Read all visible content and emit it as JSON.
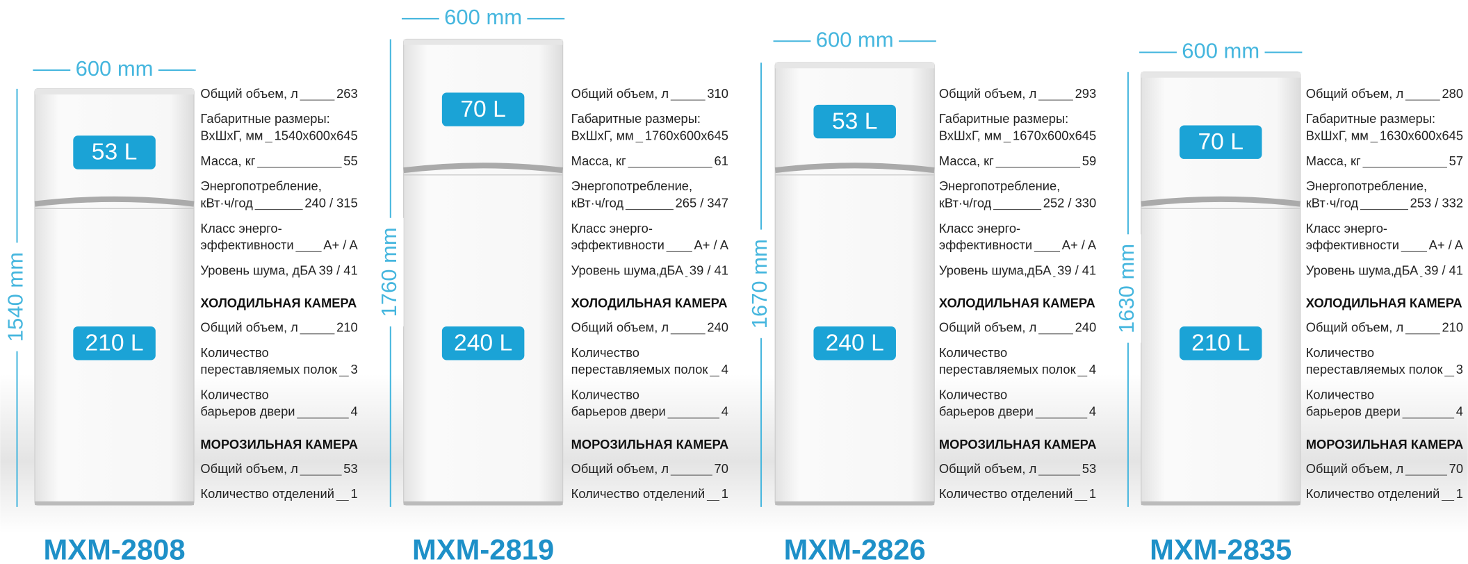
{
  "products": [
    {
      "model": "MXM-2808",
      "width": "600 mm",
      "height": "1540 mm",
      "top_volume": "53 L",
      "bottom_volume": "210 L",
      "general": [
        {
          "label": [
            "Общий объем, л"
          ],
          "value": "263"
        },
        {
          "label": [
            "Габаритные размеры:",
            "ВхШхГ, мм"
          ],
          "value": "1540x600x645"
        },
        {
          "label": [
            "Масса, кг"
          ],
          "value": "55"
        },
        {
          "label": [
            "Энергопотребление,",
            "кВт·ч/год"
          ],
          "value": "240 / 315"
        },
        {
          "label": [
            "Класс энерго-",
            "эффективности"
          ],
          "value": "A+ / A"
        },
        {
          "label": [
            "Уровень шума, дБА"
          ],
          "value": "39 / 41"
        }
      ],
      "fridge": {
        "title": "ХОЛОДИЛЬНАЯ КАМЕРА",
        "specs": [
          {
            "label": [
              "Общий объем, л"
            ],
            "value": "210"
          },
          {
            "label": [
              "Количество",
              "переставляемых полок"
            ],
            "value": "3"
          },
          {
            "label": [
              "Количество",
              "барьеров двери"
            ],
            "value": "4"
          }
        ]
      },
      "freezer": {
        "title": "МОРОЗИЛЬНАЯ КАМЕРА",
        "specs": [
          {
            "label": [
              "Общий объем, л"
            ],
            "value": "53"
          },
          {
            "label": [
              "Количество отделений"
            ],
            "value": "1"
          }
        ]
      }
    },
    {
      "model": "MXM-2819",
      "width": "600 mm",
      "height": "1760 mm",
      "top_volume": "70 L",
      "bottom_volume": "240 L",
      "general": [
        {
          "label": [
            "Общий объем, л"
          ],
          "value": "310"
        },
        {
          "label": [
            "Габаритные размеры:",
            "ВхШхГ, мм"
          ],
          "value": "1760x600x645"
        },
        {
          "label": [
            "Масса, кг"
          ],
          "value": "61"
        },
        {
          "label": [
            "Энергопотребление,",
            "кВт·ч/год"
          ],
          "value": "265 / 347"
        },
        {
          "label": [
            "Класс энерго-",
            "эффективности"
          ],
          "value": "A+ / A"
        },
        {
          "label": [
            "Уровень шума,дБА"
          ],
          "value": "39 / 41"
        }
      ],
      "fridge": {
        "title": "ХОЛОДИЛЬНАЯ КАМЕРА",
        "specs": [
          {
            "label": [
              "Общий объем, л"
            ],
            "value": "240"
          },
          {
            "label": [
              "Количество",
              "переставляемых полок"
            ],
            "value": "4"
          },
          {
            "label": [
              "Количество",
              "барьеров двери"
            ],
            "value": "4"
          }
        ]
      },
      "freezer": {
        "title": "МОРОЗИЛЬНАЯ КАМЕРА",
        "specs": [
          {
            "label": [
              "Общий объем, л"
            ],
            "value": "70"
          },
          {
            "label": [
              "Количество отделений"
            ],
            "value": "1"
          }
        ]
      }
    },
    {
      "model": "MXM-2826",
      "width": "600 mm",
      "height": "1670 mm",
      "top_volume": "53 L",
      "bottom_volume": "240 L",
      "general": [
        {
          "label": [
            "Общий объем, л"
          ],
          "value": "293"
        },
        {
          "label": [
            "Габаритные размеры:",
            "ВхШхГ, мм"
          ],
          "value": "1670x600x645"
        },
        {
          "label": [
            "Масса, кг"
          ],
          "value": "59"
        },
        {
          "label": [
            "Энергопотребление,",
            "кВт·ч/год"
          ],
          "value": "252 / 330"
        },
        {
          "label": [
            "Класс энерго-",
            "эффективности"
          ],
          "value": "A+ / A"
        },
        {
          "label": [
            "Уровень шума,дБА"
          ],
          "value": "39 / 41"
        }
      ],
      "fridge": {
        "title": "ХОЛОДИЛЬНАЯ КАМЕРА",
        "specs": [
          {
            "label": [
              "Общий объем, л"
            ],
            "value": "240"
          },
          {
            "label": [
              "Количество",
              "переставляемых полок"
            ],
            "value": "4"
          },
          {
            "label": [
              "Количество",
              "барьеров двери"
            ],
            "value": "4"
          }
        ]
      },
      "freezer": {
        "title": "МОРОЗИЛЬНАЯ КАМЕРА",
        "specs": [
          {
            "label": [
              "Общий объем, л"
            ],
            "value": "53"
          },
          {
            "label": [
              "Количество отделений"
            ],
            "value": "1"
          }
        ]
      }
    },
    {
      "model": "MXM-2835",
      "width": "600 mm",
      "height": "1630 mm",
      "top_volume": "70 L",
      "bottom_volume": "210 L",
      "general": [
        {
          "label": [
            "Общий объем, л"
          ],
          "value": "280"
        },
        {
          "label": [
            "Габаритные размеры:",
            "ВхШхГ, мм"
          ],
          "value": "1630x600x645"
        },
        {
          "label": [
            "Масса, кг"
          ],
          "value": "57"
        },
        {
          "label": [
            "Энергопотребление,",
            "кВт·ч/год"
          ],
          "value": "253 / 332"
        },
        {
          "label": [
            "Класс энерго-",
            "эффективности"
          ],
          "value": "A+ / A"
        },
        {
          "label": [
            "Уровень шума,дБА"
          ],
          "value": "39 / 41"
        }
      ],
      "fridge": {
        "title": "ХОЛОДИЛЬНАЯ КАМЕРА",
        "specs": [
          {
            "label": [
              "Общий объем, л"
            ],
            "value": "210"
          },
          {
            "label": [
              "Количество",
              "переставляемых полок"
            ],
            "value": "3"
          },
          {
            "label": [
              "Количество",
              "барьеров двери"
            ],
            "value": "4"
          }
        ]
      },
      "freezer": {
        "title": "МОРОЗИЛЬНАЯ КАМЕРА",
        "specs": [
          {
            "label": [
              "Общий объем, л"
            ],
            "value": "70"
          },
          {
            "label": [
              "Количество отделений"
            ],
            "value": "1"
          }
        ]
      }
    }
  ]
}
